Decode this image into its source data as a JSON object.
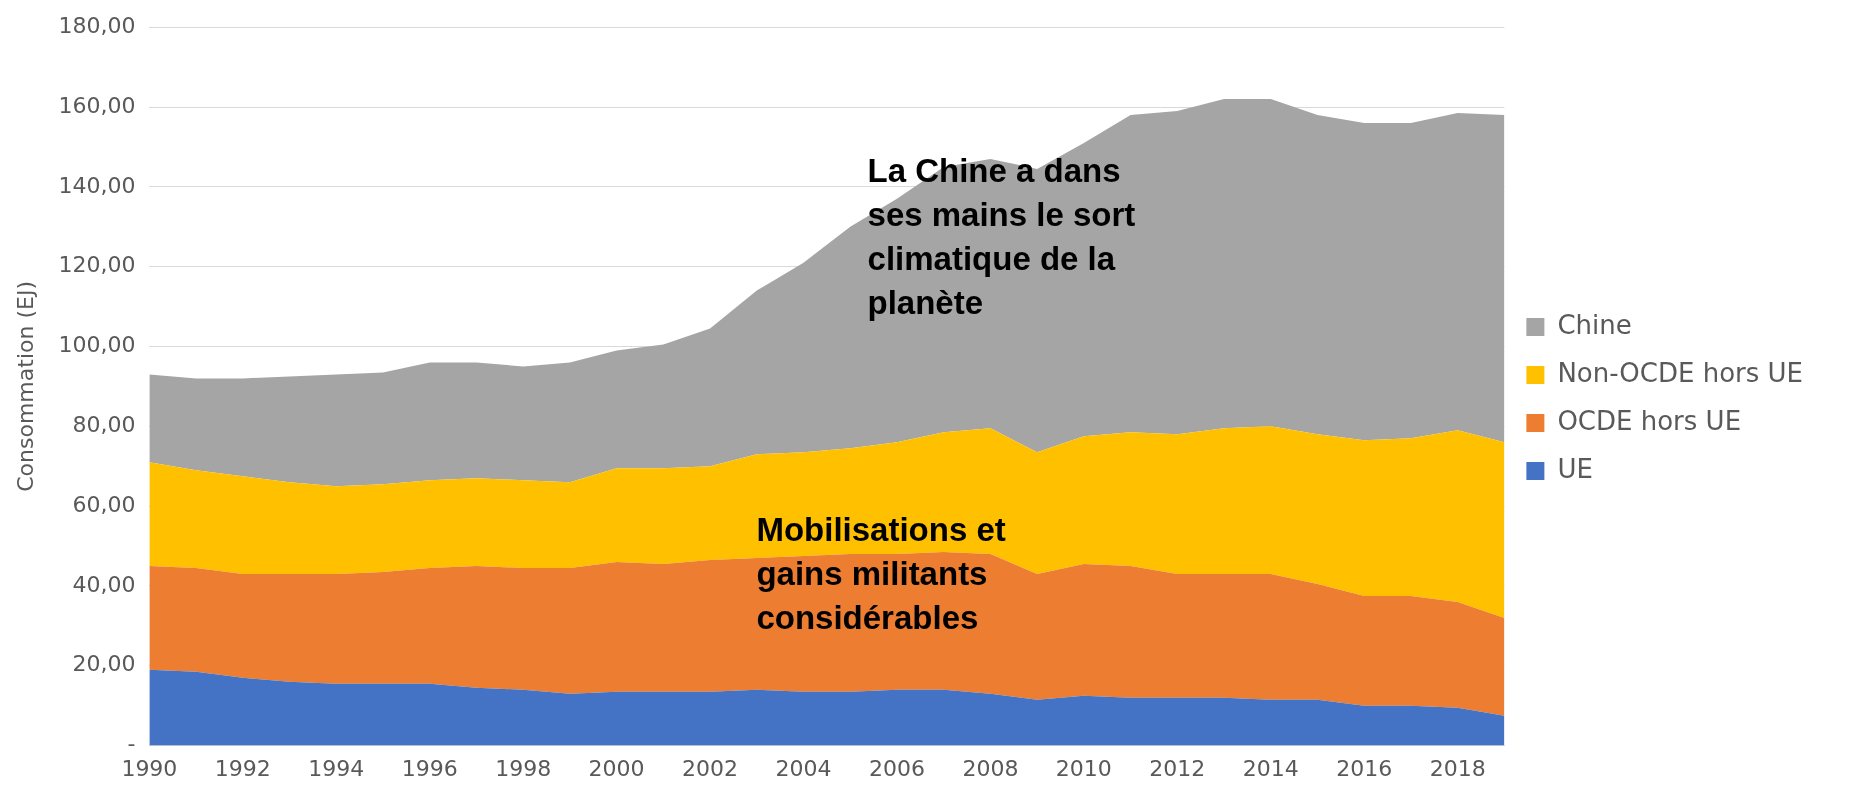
{
  "chart_data": {
    "type": "area",
    "ylabel": "Consommation (EJ)",
    "categories": [
      "1990",
      null,
      "1992",
      null,
      "1994",
      null,
      "1996",
      null,
      "1998",
      null,
      "2000",
      null,
      "2002",
      null,
      "2004",
      null,
      "2006",
      null,
      "2008",
      null,
      "2010",
      null,
      "2012",
      null,
      "2014",
      null,
      "2016",
      null,
      "2018",
      null
    ],
    "stacked": true,
    "series": [
      {
        "name": "UE",
        "color": "#4472c4",
        "values": [
          19,
          18.5,
          17,
          16,
          15.5,
          15.5,
          15.5,
          14.5,
          14,
          13,
          13.5,
          13.5,
          13.5,
          14,
          13.5,
          13.5,
          14,
          14,
          13,
          11.5,
          12.5,
          12,
          12,
          12,
          11.5,
          11.5,
          10,
          10,
          9.5,
          7.5
        ]
      },
      {
        "name": "OCDE hors UE",
        "color": "#ed7d31",
        "values": [
          26,
          26,
          26,
          27,
          27.5,
          28,
          29,
          30.5,
          30.5,
          31.5,
          32.5,
          32,
          33,
          33,
          34,
          34.5,
          34,
          34.5,
          35,
          31.5,
          33,
          33,
          31,
          31,
          31.5,
          29,
          27.5,
          27.5,
          26.5,
          24.5
        ]
      },
      {
        "name": "Non-OCDE hors UE",
        "color": "#ffc000",
        "values": [
          26,
          24.5,
          24.5,
          23,
          22,
          22,
          22,
          22,
          22,
          21.5,
          23.5,
          24,
          23.5,
          26,
          26,
          26.5,
          28,
          30,
          31.5,
          30.5,
          32,
          33.5,
          35,
          36.5,
          37,
          37.5,
          39,
          39.5,
          43,
          44
        ]
      },
      {
        "name": "Chine",
        "color": "#a5a5a5",
        "values": [
          22,
          23,
          24.5,
          26.5,
          28,
          28,
          29.5,
          29,
          28.5,
          30,
          29.5,
          31,
          34.5,
          41,
          47.5,
          55.5,
          61,
          66.5,
          67.5,
          71,
          73.5,
          79.5,
          81,
          82.5,
          82,
          80,
          79.5,
          79,
          79.5,
          82
        ]
      }
    ],
    "ylim": [
      0,
      180
    ],
    "yticks": [
      {
        "value": 0,
        "label": "-"
      },
      {
        "value": 20,
        "label": "20,00"
      },
      {
        "value": 40,
        "label": "40,00"
      },
      {
        "value": 60,
        "label": "60,00"
      },
      {
        "value": 80,
        "label": "80,00"
      },
      {
        "value": 100,
        "label": "100,00"
      },
      {
        "value": 120,
        "label": "120,00"
      },
      {
        "value": 140,
        "label": "140,00"
      },
      {
        "value": 160,
        "label": "160,00"
      },
      {
        "value": 180,
        "label": "180,00"
      }
    ],
    "grid": "y",
    "legend": "right",
    "annotations": [
      "La Chine a dans\nses mains le sort\nclimatique de la\nplanète",
      "Mobilisations et\ngains militants\nconsidérables"
    ]
  }
}
